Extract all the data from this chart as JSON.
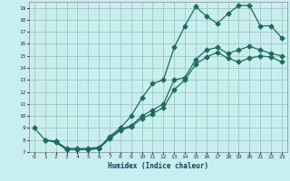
{
  "xlabel": "Humidex (Indice chaleur)",
  "bg_color": "#c8eef0",
  "grid_color": "#a0c8c0",
  "line_color": "#1a6e5e",
  "xlim": [
    -0.5,
    23.5
  ],
  "ylim": [
    7,
    19.5
  ],
  "xtick_labels": [
    "0",
    "1",
    "2",
    "3",
    "4",
    "5",
    "6",
    "7",
    "8",
    "9",
    "10",
    "11",
    "12",
    "13",
    "14",
    "15",
    "16",
    "17",
    "18",
    "19",
    "20",
    "21",
    "22",
    "23"
  ],
  "ytick_labels": [
    "7",
    "8",
    "9",
    "10",
    "11",
    "12",
    "13",
    "14",
    "15",
    "16",
    "17",
    "18",
    "19"
  ],
  "line1_x": [
    0,
    1,
    2,
    3,
    4,
    5,
    6,
    7,
    8,
    9,
    10,
    11,
    12,
    13,
    14,
    15,
    16,
    17,
    18,
    19,
    20,
    21,
    22,
    23
  ],
  "line1_y": [
    9.0,
    8.0,
    7.8,
    7.2,
    7.2,
    7.2,
    7.3,
    8.3,
    9.0,
    10.0,
    11.5,
    12.7,
    13.0,
    15.7,
    17.5,
    19.1,
    18.3,
    17.7,
    18.5,
    19.2,
    19.2,
    17.5,
    17.5,
    16.5
  ],
  "line2_x": [
    1,
    2,
    3,
    4,
    5,
    6,
    7,
    8,
    9,
    10,
    11,
    12,
    13,
    14,
    15,
    16,
    17,
    18,
    19,
    20,
    21,
    22,
    23
  ],
  "line2_y": [
    8.0,
    7.9,
    7.3,
    7.3,
    7.3,
    7.4,
    8.2,
    8.9,
    9.2,
    10.0,
    10.5,
    11.0,
    13.0,
    13.2,
    14.7,
    15.5,
    15.7,
    15.2,
    15.5,
    15.8,
    15.5,
    15.2,
    15.0
  ],
  "line3_x": [
    2,
    3,
    4,
    5,
    6,
    7,
    8,
    9,
    10,
    11,
    12,
    13,
    14,
    15,
    16,
    17,
    18,
    19,
    20,
    21,
    22,
    23
  ],
  "line3_y": [
    7.9,
    7.2,
    7.2,
    7.2,
    7.3,
    8.1,
    8.8,
    9.1,
    9.8,
    10.2,
    10.7,
    12.2,
    13.0,
    14.3,
    14.9,
    15.3,
    14.8,
    14.5,
    14.8,
    15.0,
    14.9,
    14.5
  ]
}
